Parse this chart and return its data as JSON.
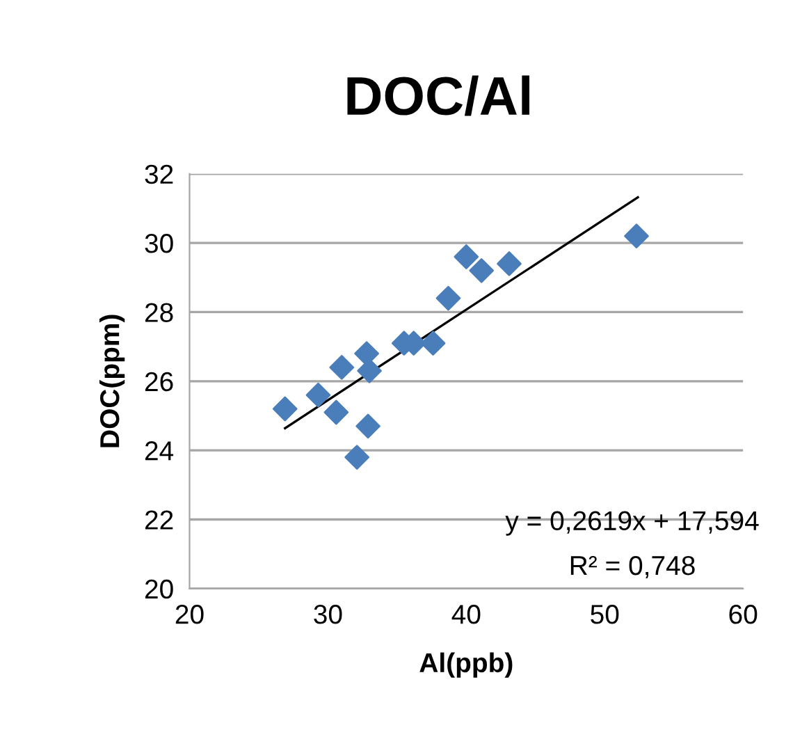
{
  "chart_data": {
    "type": "scatter",
    "title": "DOC/Al",
    "xlabel": "Al(ppb)",
    "ylabel": "DOC(ppm)",
    "x": [
      26.9,
      29.3,
      30.6,
      31.0,
      32.8,
      33.0,
      32.9,
      32.1,
      35.5,
      36.2,
      37.6,
      38.7,
      40.0,
      41.1,
      43.1,
      52.3
    ],
    "series": [
      {
        "color": "#4a7ebb",
        "marker": "diamond",
        "values": [
          25.2,
          25.6,
          25.1,
          26.4,
          26.8,
          26.3,
          24.7,
          23.8,
          27.1,
          27.1,
          27.1,
          28.4,
          29.6,
          29.2,
          29.4,
          30.2
        ]
      },
      {
        "type": "line",
        "color": "#000000",
        "marker": "none",
        "line_style": "solid",
        "x": [
          26.9,
          52.4
        ],
        "values": [
          24.64,
          31.32
        ]
      }
    ],
    "xlim": [
      20,
      60
    ],
    "xticks": [
      20,
      30,
      40,
      50,
      60
    ],
    "ylim": [
      20,
      32
    ],
    "yticks": [
      20,
      22,
      24,
      26,
      28,
      30,
      32
    ],
    "grid": "y",
    "legend": false,
    "annotations": [
      "y = 0,2619x + 17,594",
      "R² = 0,748"
    ]
  }
}
